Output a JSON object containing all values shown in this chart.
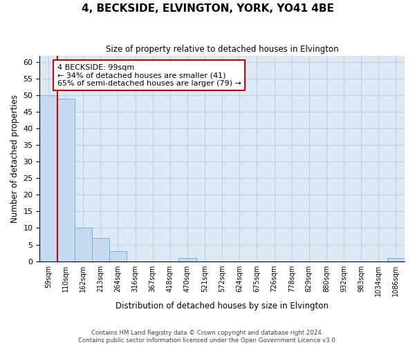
{
  "title": "4, BECKSIDE, ELVINGTON, YORK, YO41 4BE",
  "subtitle": "Size of property relative to detached houses in Elvington",
  "xlabel": "Distribution of detached houses by size in Elvington",
  "ylabel": "Number of detached properties",
  "bar_color": "#c5d9ef",
  "bar_edge_color": "#7bafd4",
  "grid_color": "#b8cfe4",
  "background_color": "#dce9f5",
  "vline_color": "#cc0000",
  "annotation_box_color": "#cc0000",
  "categories": [
    "59sqm",
    "110sqm",
    "162sqm",
    "213sqm",
    "264sqm",
    "316sqm",
    "367sqm",
    "418sqm",
    "470sqm",
    "521sqm",
    "572sqm",
    "624sqm",
    "675sqm",
    "726sqm",
    "778sqm",
    "829sqm",
    "880sqm",
    "932sqm",
    "983sqm",
    "1034sqm",
    "1086sqm"
  ],
  "values": [
    50,
    49,
    10,
    7,
    3,
    0,
    0,
    0,
    1,
    0,
    0,
    0,
    0,
    0,
    0,
    0,
    0,
    0,
    0,
    0,
    1
  ],
  "ylim": [
    0,
    62
  ],
  "yticks": [
    0,
    5,
    10,
    15,
    20,
    25,
    30,
    35,
    40,
    45,
    50,
    55,
    60
  ],
  "annotation_text": "4 BECKSIDE: 99sqm\n← 34% of detached houses are smaller (41)\n65% of semi-detached houses are larger (79) →",
  "vline_x_index": 0.5,
  "footer_line1": "Contains HM Land Registry data © Crown copyright and database right 2024.",
  "footer_line2": "Contains public sector information licensed under the Open Government Licence v3.0."
}
